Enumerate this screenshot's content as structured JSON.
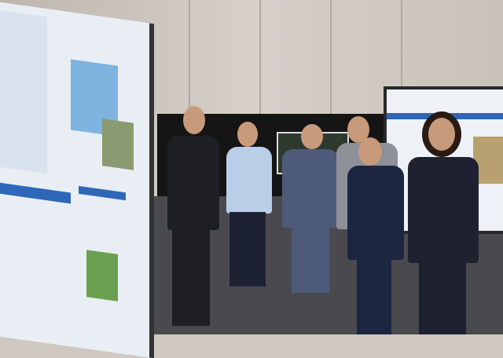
{
  "scene": {
    "colors": {
      "wall": "#cfc9c2",
      "curtain": "#151515",
      "carpet": "#4a4a4e",
      "poster_blue": "#2f67b8",
      "suit_dark": "#1e1f24",
      "suit_navy": "#1d2640",
      "suit_gray": "#6a7080"
    }
  }
}
